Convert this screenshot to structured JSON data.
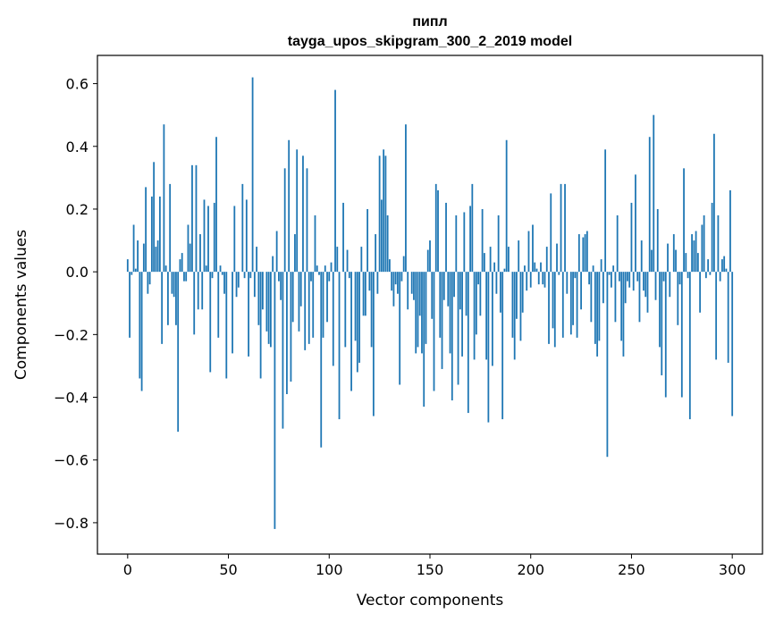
{
  "chart_data": {
    "type": "bar",
    "title_line1": "пипл",
    "title_line2": "tayga_upos_skipgram_300_2_2019 model",
    "xlabel": "Vector components",
    "ylabel": "Components values",
    "xlim": [
      -15,
      315
    ],
    "ylim": [
      -0.9,
      0.69
    ],
    "x_ticks": [
      0,
      50,
      100,
      150,
      200,
      250,
      300
    ],
    "x_tick_labels": [
      "0",
      "50",
      "100",
      "150",
      "200",
      "250",
      "300"
    ],
    "y_ticks": [
      0.6,
      0.4,
      0.2,
      0.0,
      -0.2,
      -0.4,
      -0.6,
      -0.8
    ],
    "y_tick_labels": [
      "0.6",
      "0.4",
      "0.2",
      "0.0",
      "−0.2",
      "−0.4",
      "−0.6",
      "−0.8"
    ],
    "bar_color": "#1f77b4",
    "grid": false,
    "values": [
      0.04,
      -0.21,
      -0.01,
      0.15,
      0.01,
      0.1,
      -0.34,
      -0.38,
      0.09,
      0.27,
      -0.07,
      -0.04,
      0.24,
      0.35,
      0.08,
      0.1,
      0.24,
      -0.23,
      0.47,
      0.02,
      -0.17,
      0.28,
      -0.07,
      -0.08,
      -0.17,
      -0.51,
      0.04,
      0.06,
      -0.03,
      -0.03,
      0.15,
      0.09,
      0.34,
      -0.2,
      0.34,
      -0.12,
      0.12,
      -0.12,
      0.23,
      0.02,
      0.21,
      -0.32,
      -0.02,
      0.22,
      0.43,
      -0.21,
      0.02,
      -0.01,
      -0.07,
      -0.34,
      0.0,
      0.0,
      -0.26,
      0.21,
      -0.08,
      -0.05,
      0.0,
      0.28,
      -0.02,
      0.23,
      -0.27,
      -0.02,
      0.62,
      -0.08,
      0.08,
      -0.17,
      -0.34,
      -0.12,
      0.0,
      -0.19,
      -0.23,
      -0.24,
      0.05,
      -0.82,
      0.13,
      -0.03,
      -0.09,
      -0.5,
      0.33,
      -0.39,
      0.42,
      -0.35,
      -0.16,
      0.12,
      0.39,
      -0.19,
      -0.11,
      0.37,
      -0.25,
      0.33,
      -0.23,
      -0.03,
      -0.21,
      0.18,
      0.02,
      -0.01,
      -0.56,
      -0.21,
      0.02,
      -0.16,
      -0.03,
      0.03,
      -0.3,
      0.58,
      0.08,
      -0.47,
      0.0,
      0.22,
      -0.24,
      0.07,
      -0.02,
      -0.38,
      0.0,
      -0.22,
      -0.32,
      -0.29,
      0.08,
      -0.14,
      -0.14,
      0.2,
      -0.06,
      -0.24,
      -0.46,
      0.12,
      -0.07,
      0.37,
      0.23,
      0.39,
      0.37,
      0.18,
      0.04,
      -0.06,
      -0.11,
      -0.04,
      -0.07,
      -0.36,
      -0.03,
      0.05,
      0.47,
      -0.12,
      0.0,
      -0.07,
      -0.09,
      -0.26,
      -0.24,
      -0.14,
      -0.26,
      -0.43,
      -0.23,
      0.07,
      0.1,
      -0.15,
      -0.38,
      0.28,
      0.26,
      -0.21,
      -0.31,
      -0.09,
      0.22,
      -0.11,
      -0.26,
      -0.41,
      -0.08,
      0.18,
      -0.36,
      -0.12,
      -0.27,
      0.19,
      -0.14,
      -0.45,
      0.21,
      0.28,
      -0.28,
      -0.2,
      -0.04,
      -0.14,
      0.2,
      0.06,
      -0.28,
      -0.48,
      0.08,
      -0.3,
      0.03,
      -0.07,
      0.18,
      -0.13,
      -0.47,
      0.01,
      0.42,
      0.08,
      0.0,
      -0.21,
      -0.28,
      -0.15,
      0.1,
      -0.22,
      -0.13,
      0.02,
      -0.06,
      0.13,
      -0.05,
      0.15,
      0.03,
      0.01,
      -0.04,
      0.03,
      -0.04,
      -0.05,
      0.08,
      -0.23,
      0.25,
      -0.18,
      -0.24,
      0.09,
      -0.01,
      0.28,
      -0.21,
      0.28,
      -0.07,
      0.0,
      -0.2,
      -0.17,
      -0.02,
      -0.21,
      0.12,
      -0.12,
      0.11,
      0.12,
      0.13,
      -0.04,
      -0.16,
      0.02,
      -0.23,
      -0.27,
      -0.22,
      0.04,
      -0.1,
      0.39,
      -0.59,
      -0.01,
      -0.05,
      0.02,
      -0.16,
      0.18,
      -0.03,
      -0.22,
      -0.27,
      -0.1,
      -0.03,
      -0.05,
      0.22,
      -0.06,
      0.31,
      -0.03,
      -0.16,
      0.1,
      -0.06,
      -0.08,
      -0.13,
      0.43,
      0.07,
      0.5,
      -0.09,
      0.2,
      -0.24,
      -0.33,
      -0.03,
      -0.4,
      0.09,
      -0.08,
      0.0,
      0.12,
      0.07,
      -0.17,
      -0.04,
      -0.4,
      0.33,
      0.06,
      -0.02,
      -0.47,
      0.12,
      0.1,
      0.13,
      0.06,
      -0.13,
      0.15,
      0.18,
      -0.02,
      0.04,
      -0.01,
      0.22,
      0.44,
      -0.28,
      0.18,
      -0.03,
      0.04,
      0.05,
      0.01,
      -0.29,
      0.26,
      -0.46
    ]
  }
}
